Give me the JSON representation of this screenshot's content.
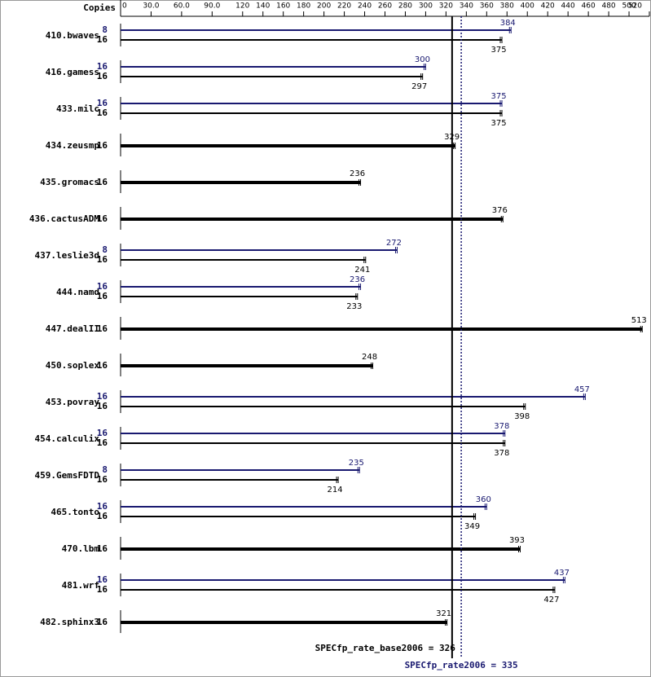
{
  "chart_data": {
    "type": "bar",
    "axis_title": "Copies",
    "categories": [
      "410.bwaves",
      "416.gamess",
      "433.milc",
      "434.zeusmp",
      "435.gromacs",
      "436.cactusADM",
      "437.leslie3d",
      "444.namd",
      "447.dealII",
      "450.soplex",
      "453.povray",
      "454.calculix",
      "459.GemsFDTD",
      "465.tonto",
      "470.lbm",
      "481.wrf",
      "482.sphinx3"
    ],
    "series": [
      {
        "color": "#191970",
        "copies": [
          8,
          16,
          16,
          null,
          null,
          null,
          8,
          16,
          null,
          null,
          16,
          16,
          8,
          16,
          null,
          16,
          null
        ],
        "values": [
          384,
          300,
          375,
          null,
          null,
          null,
          272,
          236,
          null,
          null,
          457,
          378,
          235,
          360,
          null,
          437,
          null
        ]
      },
      {
        "color": "#000000",
        "copies": [
          16,
          16,
          16,
          16,
          16,
          16,
          16,
          16,
          16,
          16,
          16,
          16,
          16,
          16,
          16,
          16,
          16
        ],
        "values": [
          375,
          297,
          375,
          329,
          236,
          376,
          241,
          233,
          513,
          248,
          398,
          378,
          214,
          349,
          393,
          427,
          321
        ]
      }
    ],
    "xlim": [
      0,
      520
    ],
    "xticks": [
      0,
      {
        "value": 30,
        "label": "30.0"
      },
      {
        "value": 60,
        "label": "60.0"
      },
      {
        "value": 90,
        "label": "90.0"
      },
      120,
      140,
      160,
      180,
      200,
      220,
      240,
      260,
      280,
      300,
      320,
      340,
      360,
      380,
      400,
      420,
      440,
      460,
      480,
      500,
      520
    ],
    "reference_lines": [
      {
        "label": "SPECfp_rate_base2006 = 326",
        "value": 326,
        "color": "#000000",
        "style": "solid"
      },
      {
        "label": "SPECfp_rate2006 = 335",
        "value": 335,
        "color": "#191970",
        "style": "dotted"
      }
    ]
  }
}
